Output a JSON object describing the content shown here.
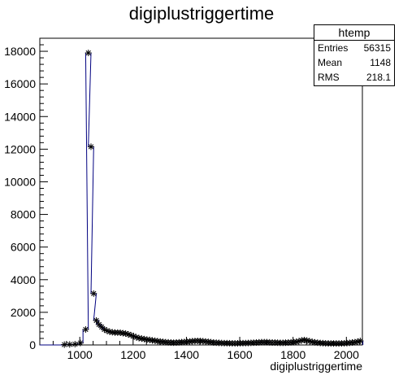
{
  "chart_data": {
    "type": "line",
    "title": "digiplustriggertime",
    "xlabel": "digiplustriggertime",
    "ylabel": "",
    "xlim": [
      850,
      2060
    ],
    "ylim": [
      0,
      18800
    ],
    "grid": false,
    "x_ticks": [
      1000,
      1200,
      1400,
      1600,
      1800,
      2000
    ],
    "y_ticks": [
      0,
      2000,
      4000,
      6000,
      8000,
      10000,
      12000,
      14000,
      16000,
      18000
    ],
    "stats_box": {
      "title": "htemp",
      "rows": [
        {
          "label": "Entries",
          "value": "56315"
        },
        {
          "label": "Mean",
          "value": "1148"
        },
        {
          "label": "RMS",
          "value": "218.1"
        }
      ]
    },
    "series": [
      {
        "marker": "asterisk",
        "points": [
          [
            942,
            20
          ],
          [
            962,
            30
          ],
          [
            982,
            50
          ],
          [
            1002,
            120
          ],
          [
            1022,
            950
          ],
          [
            1032,
            17900
          ],
          [
            1042,
            12150
          ],
          [
            1052,
            3150
          ],
          [
            1062,
            1500
          ],
          [
            1072,
            1250
          ],
          [
            1082,
            1100
          ],
          [
            1092,
            950
          ],
          [
            1102,
            870
          ],
          [
            1112,
            810
          ],
          [
            1122,
            780
          ],
          [
            1132,
            760
          ],
          [
            1142,
            760
          ],
          [
            1152,
            750
          ],
          [
            1162,
            720
          ],
          [
            1172,
            700
          ],
          [
            1182,
            650
          ],
          [
            1192,
            600
          ],
          [
            1202,
            540
          ],
          [
            1212,
            470
          ],
          [
            1222,
            420
          ],
          [
            1232,
            390
          ],
          [
            1242,
            360
          ],
          [
            1252,
            330
          ],
          [
            1262,
            310
          ],
          [
            1272,
            280
          ],
          [
            1282,
            260
          ],
          [
            1292,
            230
          ],
          [
            1302,
            210
          ],
          [
            1312,
            190
          ],
          [
            1322,
            170
          ],
          [
            1332,
            160
          ],
          [
            1342,
            150
          ],
          [
            1352,
            140
          ],
          [
            1362,
            150
          ],
          [
            1372,
            160
          ],
          [
            1382,
            170
          ],
          [
            1392,
            180
          ],
          [
            1402,
            190
          ],
          [
            1412,
            210
          ],
          [
            1422,
            230
          ],
          [
            1432,
            240
          ],
          [
            1442,
            250
          ],
          [
            1452,
            240
          ],
          [
            1462,
            230
          ],
          [
            1472,
            210
          ],
          [
            1482,
            190
          ],
          [
            1492,
            170
          ],
          [
            1502,
            150
          ],
          [
            1512,
            140
          ],
          [
            1522,
            130
          ],
          [
            1532,
            120
          ],
          [
            1542,
            110
          ],
          [
            1552,
            110
          ],
          [
            1562,
            105
          ],
          [
            1572,
            100
          ],
          [
            1582,
            100
          ],
          [
            1592,
            100
          ],
          [
            1602,
            105
          ],
          [
            1612,
            110
          ],
          [
            1622,
            115
          ],
          [
            1632,
            120
          ],
          [
            1642,
            130
          ],
          [
            1652,
            140
          ],
          [
            1662,
            150
          ],
          [
            1672,
            160
          ],
          [
            1682,
            170
          ],
          [
            1692,
            170
          ],
          [
            1702,
            170
          ],
          [
            1712,
            160
          ],
          [
            1722,
            150
          ],
          [
            1732,
            150
          ],
          [
            1742,
            140
          ],
          [
            1752,
            130
          ],
          [
            1762,
            130
          ],
          [
            1772,
            140
          ],
          [
            1782,
            150
          ],
          [
            1792,
            160
          ],
          [
            1802,
            170
          ],
          [
            1812,
            190
          ],
          [
            1822,
            230
          ],
          [
            1832,
            280
          ],
          [
            1842,
            300
          ],
          [
            1852,
            270
          ],
          [
            1862,
            230
          ],
          [
            1872,
            190
          ],
          [
            1882,
            160
          ],
          [
            1892,
            140
          ],
          [
            1902,
            120
          ],
          [
            1912,
            110
          ],
          [
            1922,
            100
          ],
          [
            1932,
            95
          ],
          [
            1942,
            90
          ],
          [
            1952,
            90
          ],
          [
            1962,
            90
          ],
          [
            1972,
            90
          ],
          [
            1982,
            95
          ],
          [
            1992,
            100
          ],
          [
            2002,
            110
          ],
          [
            2012,
            130
          ],
          [
            2022,
            150
          ],
          [
            2032,
            170
          ],
          [
            2042,
            200
          ],
          [
            2052,
            250
          ]
        ]
      }
    ]
  }
}
